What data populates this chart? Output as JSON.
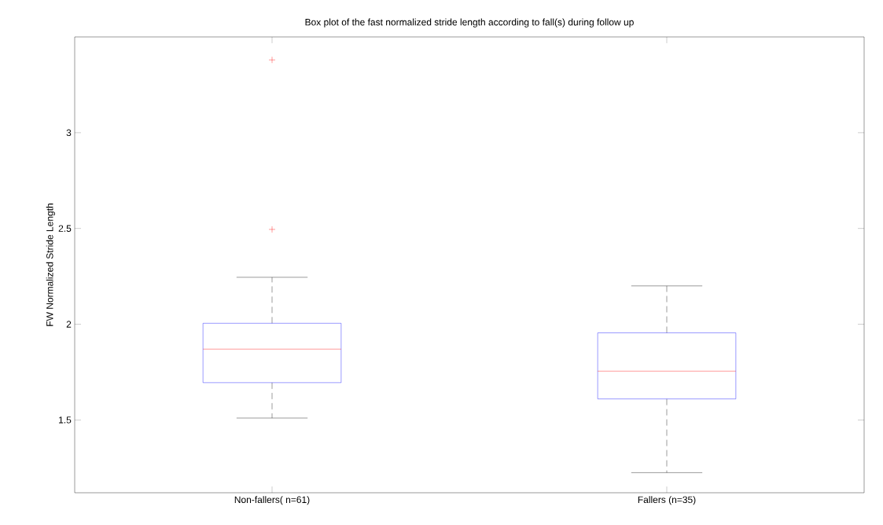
{
  "chart_data": {
    "type": "box",
    "title": "Box plot of the fast normalized stride length according to fall(s) during follow up",
    "ylabel": "FW Normalized Stride Length",
    "categories": [
      "Non-fallers( n=61)",
      "Fallers (n=35)"
    ],
    "boxes": [
      {
        "low": 1.51,
        "q1": 1.695,
        "median": 1.87,
        "q3": 2.005,
        "high": 2.245,
        "outliers": [
          3.38,
          2.495
        ]
      },
      {
        "low": 1.225,
        "q1": 1.61,
        "median": 1.755,
        "q3": 1.955,
        "high": 2.2
      }
    ],
    "ylim": [
      1.12,
      3.5
    ],
    "yticks": [
      1.5,
      2,
      2.5,
      3
    ]
  }
}
